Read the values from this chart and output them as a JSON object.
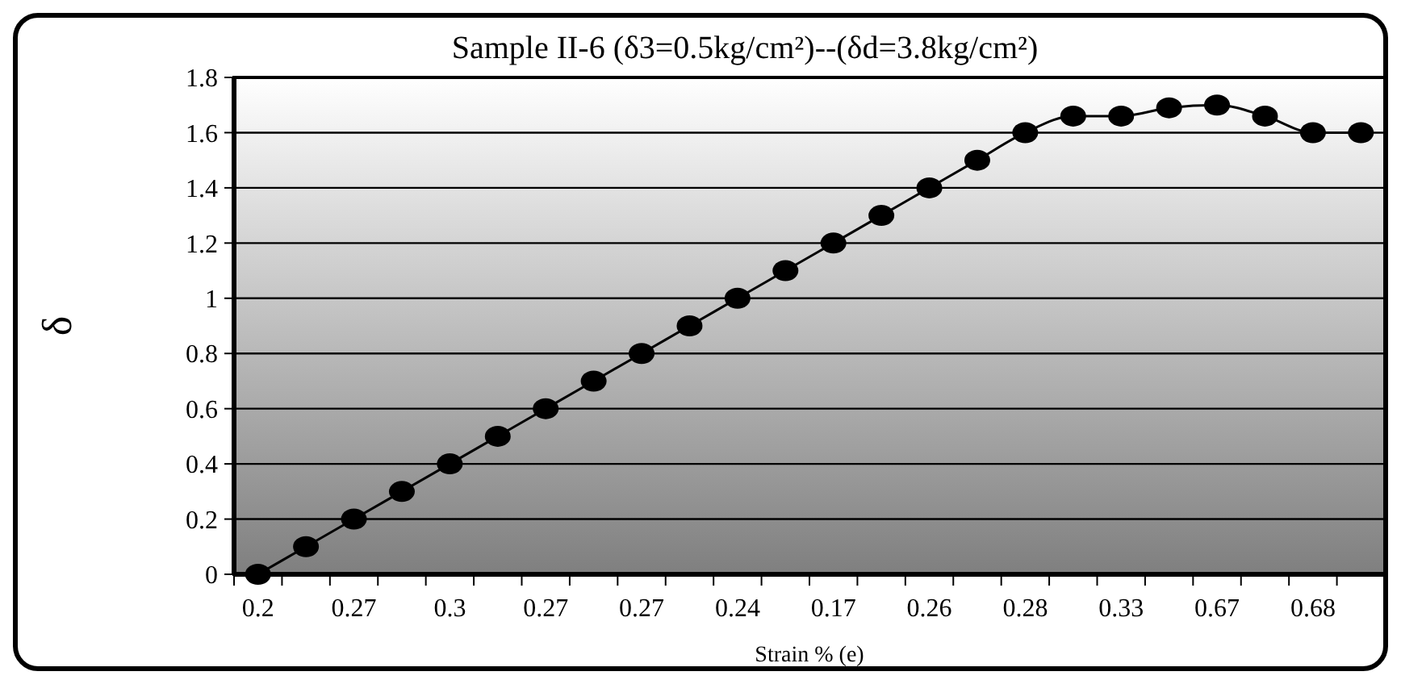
{
  "chart_data": {
    "type": "line",
    "title": "Sample II-6 (δ3=0.5kg/cm²)--(δd=3.8kg/cm²)",
    "xlabel": "Strain % (e)",
    "ylabel": "δ",
    "categories": [
      "0.2",
      null,
      "0.27",
      null,
      "0.3",
      null,
      "0.27",
      null,
      "0.27",
      null,
      "0.24",
      null,
      "0.17",
      null,
      "0.26",
      null,
      "0.28",
      null,
      "0.33",
      null,
      "0.67",
      null,
      "0.68",
      null
    ],
    "series": [
      {
        "color": "#000000",
        "values": [
          0,
          0.1,
          0.2,
          0.3,
          0.4,
          0.5,
          0.6,
          0.7,
          0.8,
          0.9,
          1.0,
          1.1,
          1.2,
          1.3,
          1.4,
          1.5,
          1.6,
          1.66,
          1.66,
          1.69,
          1.7,
          1.66,
          1.6,
          1.6
        ]
      }
    ],
    "ylim": [
      0,
      1.8
    ],
    "yticks": [
      0,
      0.2,
      0.4,
      0.6,
      0.8,
      1,
      1.2,
      1.4,
      1.6,
      1.8
    ],
    "grid": "y",
    "marker": "circle",
    "line_style": "solid"
  }
}
